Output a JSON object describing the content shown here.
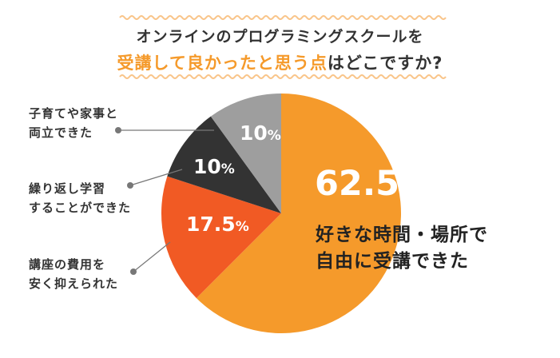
{
  "title": {
    "line1": "オンラインのプログラミングスクールを",
    "line2_accent": "受講して良かったと思う点",
    "line2_rest": "はどこですか?"
  },
  "colors": {
    "orange": "#F59A2B",
    "red_orange": "#F15A24",
    "dark": "#333333",
    "gray": "#9E9E9E",
    "wavy": "#F9C58A"
  },
  "chart_data": {
    "type": "pie",
    "title": "オンラインのプログラミングスクールを受講して良かったと思う点はどこですか?",
    "unit": "%",
    "slices": [
      {
        "label": "好きな時間・場所で自由に受講できた",
        "value": 62.5,
        "display": "62.5",
        "color": "#F59A2B"
      },
      {
        "label": "講座の費用を安く抑えられた",
        "value": 17.5,
        "display": "17.5",
        "color": "#F15A24"
      },
      {
        "label": "繰り返し学習することができた",
        "value": 10,
        "display": "10",
        "color": "#333333"
      },
      {
        "label": "子育てや家事と両立できた",
        "value": 10,
        "display": "10",
        "color": "#9E9E9E"
      }
    ]
  },
  "labels": {
    "main_line1": "好きな時間・場所で",
    "main_line2": "自由に受講できた",
    "cost_line1": "講座の費用を",
    "cost_line2": "安く抑えられた",
    "repeat_line1": "繰り返し学習",
    "repeat_line2": "することができた",
    "parent_line1": "子育てや家事と",
    "parent_line2": "両立できた"
  }
}
